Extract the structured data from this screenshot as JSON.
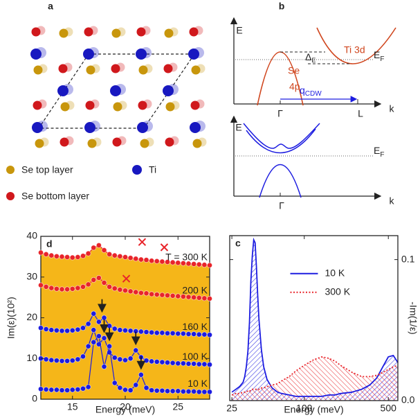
{
  "panel_a": {
    "label": "a",
    "legend": [
      "Se top layer",
      "Ti",
      "Se bottom layer"
    ]
  },
  "panel_b": {
    "label": "b",
    "top": {
      "e_axis": "E",
      "k_axis": "k",
      "band_ti": "Ti 3d",
      "band_se": [
        "Se",
        "4p"
      ],
      "fermi": {
        "main": "E",
        "sub": "F"
      },
      "gap": {
        "main": "Δ",
        "sub": "E"
      },
      "wavevector": {
        "main": "q",
        "sub": "CDW"
      },
      "gamma": "Γ",
      "l_point": "L"
    },
    "bottom": {
      "e_axis": "E",
      "k_axis": "k",
      "fermi": {
        "main": "E",
        "sub": "F"
      },
      "gamma": "Γ"
    }
  },
  "chart_data": [
    {
      "type": "line",
      "panel_label": "d",
      "xlabel": "Energy (meV)",
      "ylabel": "Im(ε)(10²)",
      "xlim": [
        12,
        28
      ],
      "xticks": [
        15,
        20,
        25
      ],
      "ylim": [
        0,
        40
      ],
      "yticks": [
        0,
        10,
        20,
        30,
        40
      ],
      "fill_color": "#f5b619",
      "x": [
        12,
        12.5,
        13,
        13.5,
        14,
        14.5,
        15,
        15.5,
        16,
        16.5,
        17,
        17.5,
        18,
        18.5,
        19,
        19.5,
        20,
        20.5,
        21,
        21.5,
        22,
        22.5,
        23,
        23.5,
        24,
        24.5,
        25,
        25.5,
        26,
        26.5,
        27,
        27.5,
        28
      ],
      "series": [
        {
          "name": "T = 300 K",
          "color": "#e8242a",
          "values": [
            36.0,
            35.6,
            35.3,
            35.1,
            35.0,
            34.9,
            34.8,
            34.9,
            35.2,
            35.8,
            37.2,
            37.8,
            36.6,
            35.6,
            35.3,
            35.1,
            34.9,
            34.7,
            34.5,
            34.3,
            34.2,
            34.0,
            33.9,
            33.8,
            33.7,
            33.6,
            33.5,
            33.4,
            33.3,
            33.2,
            33.1,
            33.0,
            32.9
          ]
        },
        {
          "name": "200 K",
          "color": "#e8242a",
          "values": [
            28.0,
            27.6,
            27.3,
            27.1,
            27.0,
            27.0,
            27.1,
            27.3,
            27.6,
            28.2,
            29.3,
            29.8,
            28.6,
            27.6,
            27.2,
            26.9,
            26.7,
            26.5,
            26.3,
            26.1,
            26.0,
            25.8,
            25.7,
            25.6,
            25.5,
            25.4,
            25.3,
            25.2,
            25.1,
            25.0,
            24.9,
            24.8,
            24.7
          ]
        },
        {
          "name": "160 K",
          "color": "#1c1ce0",
          "values": [
            17.5,
            17.2,
            17.0,
            16.9,
            16.8,
            16.8,
            16.9,
            17.1,
            17.5,
            18.5,
            21.0,
            19.0,
            20.0,
            18.0,
            17.3,
            17.0,
            16.9,
            16.8,
            16.7,
            16.6,
            16.5,
            16.4,
            16.3,
            16.3,
            16.2,
            16.2,
            16.1,
            16.1,
            16.0,
            16.0,
            15.9,
            15.9,
            15.8
          ]
        },
        {
          "name": "100 K",
          "color": "#1c1ce0",
          "values": [
            10.0,
            9.8,
            9.6,
            9.5,
            9.4,
            9.4,
            9.5,
            9.8,
            10.5,
            13.0,
            17.0,
            13.5,
            15.0,
            11.5,
            10.2,
            9.8,
            9.6,
            10.0,
            12.0,
            10.3,
            9.5,
            9.3,
            9.2,
            9.1,
            9.0,
            8.9,
            8.8,
            8.8,
            8.7,
            8.7,
            8.6,
            8.6,
            8.5
          ]
        },
        {
          "name": "10 K",
          "color": "#1c1ce0",
          "values": [
            2.5,
            2.4,
            2.3,
            2.3,
            2.2,
            2.2,
            2.3,
            2.4,
            2.6,
            3.0,
            14.0,
            15.5,
            8.0,
            13.0,
            4.0,
            2.8,
            2.3,
            2.2,
            3.5,
            6.0,
            2.8,
            2.2,
            2.1,
            2.1,
            2.0,
            2.0,
            2.0,
            1.9,
            1.9,
            1.9,
            1.8,
            1.8,
            1.8
          ]
        }
      ],
      "crosses": {
        "color": "#e8242a",
        "points": [
          {
            "x": 21.6,
            "y": 38.6
          },
          {
            "x": 23.7,
            "y": 37.3
          },
          {
            "x": 20.1,
            "y": 29.6
          }
        ]
      },
      "arrows": [
        {
          "x": 17.8,
          "y": 21.5
        },
        {
          "x": 18.0,
          "y": 16.5
        },
        {
          "x": 18.5,
          "y": 14.5
        },
        {
          "x": 21.0,
          "y": 13.5
        },
        {
          "x": 21.5,
          "y": 7.5
        }
      ]
    },
    {
      "type": "area",
      "panel_label": "c",
      "xlabel": "Energy (meV)",
      "y2label": "-Im(1/ε)",
      "xscale": "log",
      "xlim": [
        24,
        600
      ],
      "xticks": [
        25,
        100,
        500
      ],
      "y2lim": [
        0,
        0.117
      ],
      "y2ticks": [
        {
          "value": 0,
          "label": "0.0"
        },
        0.1
      ],
      "legend": "upper center",
      "x": [
        25,
        27,
        29,
        31,
        32,
        33,
        34,
        35,
        36,
        37,
        38,
        39,
        40,
        41,
        42,
        44,
        46,
        49,
        54,
        60,
        65,
        75,
        85,
        100,
        120,
        140,
        160,
        180,
        200,
        250,
        300,
        350,
        400,
        450,
        500,
        550,
        600
      ],
      "series": [
        {
          "name": "10 K",
          "color": "#1c1ce0",
          "line": "solid",
          "axis": "y2",
          "values": [
            0.006,
            0.008,
            0.01,
            0.013,
            0.017,
            0.024,
            0.035,
            0.055,
            0.085,
            0.103,
            0.114,
            0.112,
            0.095,
            0.075,
            0.058,
            0.036,
            0.024,
            0.015,
            0.009,
            0.006,
            0.005,
            0.004,
            0.003,
            0.003,
            0.003,
            0.003,
            0.004,
            0.004,
            0.005,
            0.006,
            0.008,
            0.011,
            0.016,
            0.024,
            0.031,
            0.032,
            0.027
          ]
        },
        {
          "name": "300 K",
          "color": "#e8242a",
          "line": "dotted",
          "axis": "y2",
          "values": [
            0.004,
            0.005,
            0.005,
            0.006,
            0.006,
            0.006,
            0.007,
            0.007,
            0.007,
            0.008,
            0.008,
            0.008,
            0.008,
            0.008,
            0.008,
            0.009,
            0.009,
            0.01,
            0.011,
            0.012,
            0.014,
            0.017,
            0.021,
            0.025,
            0.029,
            0.031,
            0.03,
            0.028,
            0.025,
            0.02,
            0.017,
            0.017,
            0.018,
            0.02,
            0.022,
            0.024,
            0.025
          ]
        }
      ]
    }
  ]
}
